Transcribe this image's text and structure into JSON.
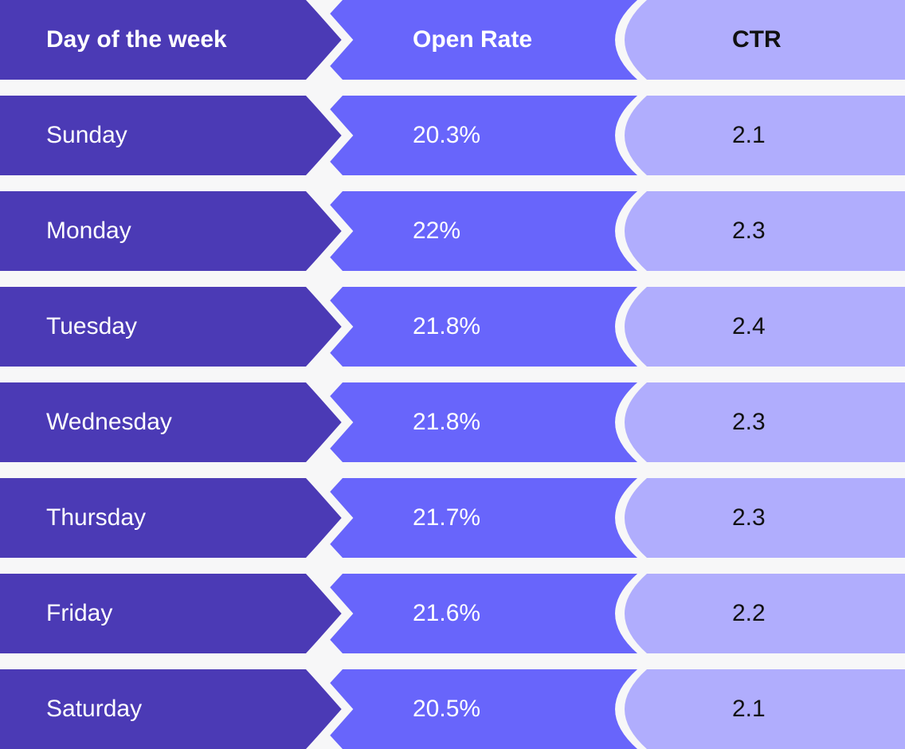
{
  "colors": {
    "background": "#f7f7f8",
    "day_column": "#4b3ab5",
    "open_rate_column": "#6865fb",
    "ctr_column": "#b0adfd",
    "light_text": "#ffffff",
    "dark_text": "#111111"
  },
  "table": {
    "headers": {
      "day": "Day of the week",
      "open_rate": "Open Rate",
      "ctr": "CTR"
    },
    "rows": [
      {
        "day": "Sunday",
        "open_rate": "20.3%",
        "ctr": "2.1"
      },
      {
        "day": "Monday",
        "open_rate": "22%",
        "ctr": "2.3"
      },
      {
        "day": "Tuesday",
        "open_rate": "21.8%",
        "ctr": "2.4"
      },
      {
        "day": "Wednesday",
        "open_rate": "21.8%",
        "ctr": "2.3"
      },
      {
        "day": "Thursday",
        "open_rate": "21.7%",
        "ctr": "2.3"
      },
      {
        "day": "Friday",
        "open_rate": "21.6%",
        "ctr": "2.2"
      },
      {
        "day": "Saturday",
        "open_rate": "20.5%",
        "ctr": "2.1"
      }
    ]
  },
  "chart_data": {
    "type": "table",
    "columns": [
      "Day of the week",
      "Open Rate",
      "CTR"
    ],
    "rows": [
      [
        "Sunday",
        "20.3%",
        "2.1"
      ],
      [
        "Monday",
        "22%",
        "2.3"
      ],
      [
        "Tuesday",
        "21.8%",
        "2.4"
      ],
      [
        "Wednesday",
        "21.8%",
        "2.3"
      ],
      [
        "Thursday",
        "21.7%",
        "2.3"
      ],
      [
        "Friday",
        "21.6%",
        "2.2"
      ],
      [
        "Saturday",
        "20.5%",
        "2.1"
      ]
    ],
    "open_rate_percent": [
      20.3,
      22,
      21.8,
      21.8,
      21.7,
      21.6,
      20.5
    ],
    "ctr": [
      2.1,
      2.3,
      2.4,
      2.3,
      2.3,
      2.2,
      2.1
    ]
  }
}
